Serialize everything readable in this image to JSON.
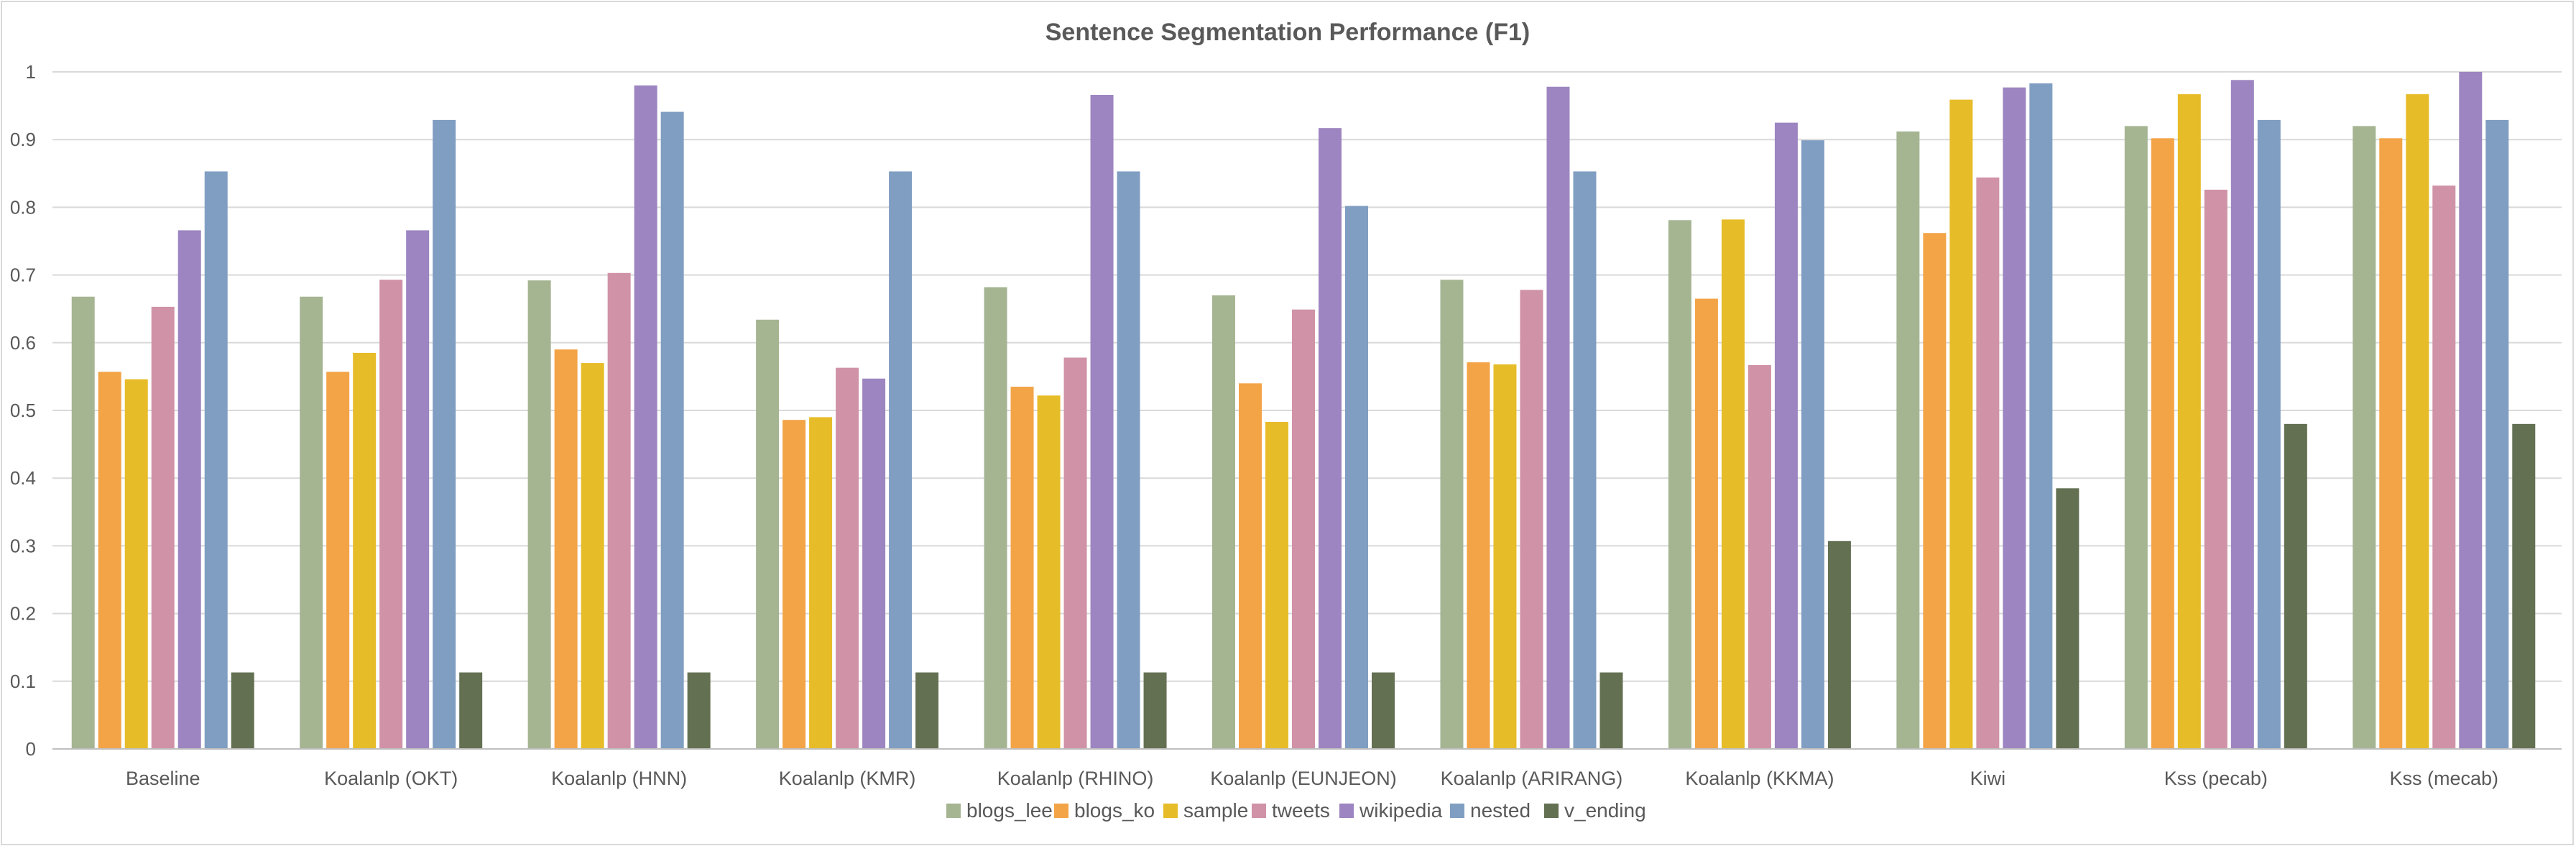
{
  "chart_data": {
    "type": "bar",
    "title": "Sentence Segmentation Performance (F1)",
    "xlabel": "",
    "ylabel": "",
    "ylim": [
      0,
      1
    ],
    "yticks": [
      "0",
      "0.1",
      "0.2",
      "0.3",
      "0.4",
      "0.5",
      "0.6",
      "0.7",
      "0.8",
      "0.9",
      "1"
    ],
    "grid": true,
    "legend_position": "bottom",
    "categories": [
      "Baseline",
      "Koalanlp (OKT)",
      "Koalanlp (HNN)",
      "Koalanlp (KMR)",
      "Koalanlp (RHINO)",
      "Koalanlp (EUNJEON)",
      "Koalanlp (ARIRANG)",
      "Koalanlp (KKMA)",
      "Kiwi",
      "Kss (pecab)",
      "Kss (mecab)"
    ],
    "series": [
      {
        "name": "blogs_lee",
        "color": "#a5b592",
        "values": [
          0.668,
          0.668,
          0.692,
          0.634,
          0.682,
          0.67,
          0.693,
          0.781,
          0.912,
          0.92,
          0.92
        ]
      },
      {
        "name": "blogs_ko",
        "color": "#f3a447",
        "values": [
          0.557,
          0.557,
          0.59,
          0.486,
          0.535,
          0.54,
          0.571,
          0.665,
          0.762,
          0.902,
          0.902
        ]
      },
      {
        "name": "sample",
        "color": "#e7bc29",
        "values": [
          0.546,
          0.585,
          0.57,
          0.49,
          0.522,
          0.483,
          0.568,
          0.782,
          0.959,
          0.967,
          0.967
        ]
      },
      {
        "name": "tweets",
        "color": "#d092a7",
        "values": [
          0.653,
          0.693,
          0.703,
          0.563,
          0.578,
          0.649,
          0.678,
          0.567,
          0.844,
          0.826,
          0.832
        ]
      },
      {
        "name": "wikipedia",
        "color": "#9c85c0",
        "values": [
          0.766,
          0.766,
          0.98,
          0.547,
          0.966,
          0.917,
          0.978,
          0.925,
          0.977,
          0.988,
          1.0
        ]
      },
      {
        "name": "nested",
        "color": "#809ec2",
        "values": [
          0.853,
          0.929,
          0.941,
          0.853,
          0.853,
          0.802,
          0.853,
          0.899,
          0.983,
          0.929,
          0.929
        ]
      },
      {
        "name": "v_ending",
        "color": "#637052",
        "values": [
          0.113,
          0.113,
          0.113,
          0.113,
          0.113,
          0.113,
          0.113,
          0.307,
          0.385,
          0.48,
          0.48
        ]
      }
    ],
    "colors": {
      "grid": "#d9d9d9",
      "axis": "#bfbfbf",
      "text": "#595959",
      "title": "#595959"
    }
  }
}
